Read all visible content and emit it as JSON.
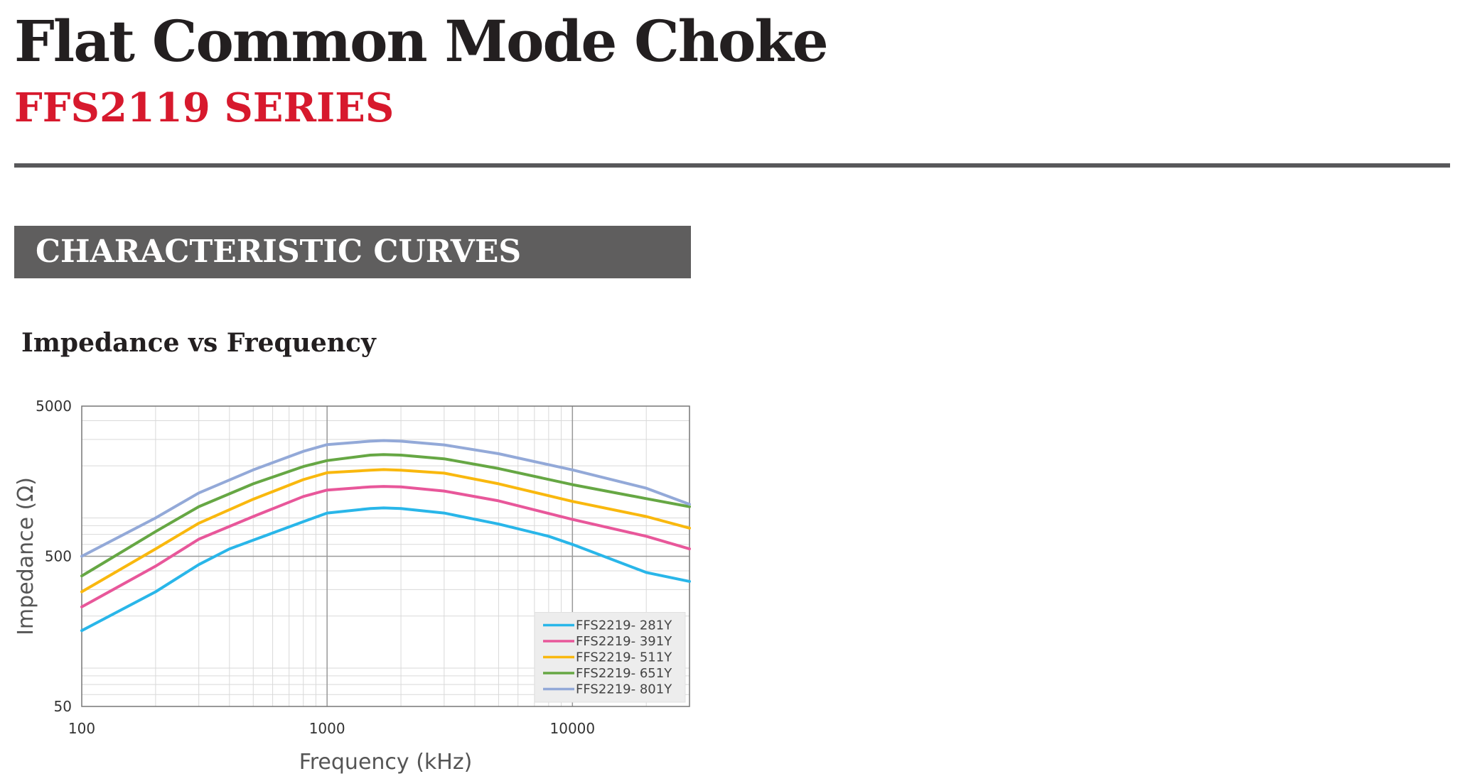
{
  "header": {
    "title": "Flat Common Mode Choke",
    "series": "FFS2119 SERIES"
  },
  "section": {
    "heading": "CHARACTERISTIC CURVES"
  },
  "chart_data": {
    "type": "line",
    "title": "Impedance vs Frequency",
    "xlabel": "Frequency (kHz)",
    "ylabel": "Impedance (Ω)",
    "x_scale": "log",
    "y_scale": "log",
    "xlim": [
      100,
      30000
    ],
    "ylim": [
      50,
      5000
    ],
    "x_ticks": [
      100,
      1000,
      10000
    ],
    "x_tick_labels": [
      "100",
      "1000",
      "10000"
    ],
    "y_ticks": [
      50,
      500,
      5000
    ],
    "y_tick_labels": [
      "50",
      "500",
      "5000"
    ],
    "grid": true,
    "legend_position": "bottom-right",
    "series": [
      {
        "name": "FFS2219- 281Y",
        "color": "#29b6e9",
        "x": [
          100,
          200,
          300,
          400,
          500,
          800,
          1000,
          1500,
          1700,
          2000,
          3000,
          5000,
          8000,
          10000,
          20000,
          30000
        ],
        "y": [
          160,
          290,
          440,
          560,
          640,
          850,
          970,
          1040,
          1050,
          1040,
          970,
          820,
          680,
          600,
          390,
          340
        ]
      },
      {
        "name": "FFS2219- 391Y",
        "color": "#e8579a",
        "x": [
          100,
          200,
          300,
          500,
          800,
          1000,
          1500,
          1700,
          2000,
          3000,
          5000,
          10000,
          20000,
          30000
        ],
        "y": [
          230,
          430,
          650,
          920,
          1250,
          1380,
          1450,
          1460,
          1450,
          1360,
          1170,
          880,
          680,
          560
        ]
      },
      {
        "name": "FFS2219- 511Y",
        "color": "#f9b80e",
        "x": [
          100,
          200,
          300,
          500,
          800,
          1000,
          1500,
          1700,
          2000,
          3000,
          5000,
          10000,
          20000,
          30000
        ],
        "y": [
          290,
          560,
          830,
          1200,
          1620,
          1800,
          1870,
          1890,
          1870,
          1790,
          1520,
          1160,
          920,
          770
        ]
      },
      {
        "name": "FFS2219- 651Y",
        "color": "#66a744",
        "x": [
          100,
          200,
          300,
          500,
          800,
          1000,
          1500,
          1700,
          2000,
          3000,
          5000,
          10000,
          20000,
          30000
        ],
        "y": [
          370,
          730,
          1070,
          1520,
          1980,
          2170,
          2360,
          2380,
          2360,
          2230,
          1920,
          1500,
          1210,
          1070
        ]
      },
      {
        "name": "FFS2219- 801Y",
        "color": "#93a9d8",
        "x": [
          100,
          200,
          300,
          500,
          800,
          1000,
          1500,
          1700,
          2000,
          3000,
          5000,
          10000,
          20000,
          30000
        ],
        "y": [
          500,
          900,
          1320,
          1880,
          2500,
          2770,
          2920,
          2950,
          2920,
          2760,
          2410,
          1880,
          1420,
          1110
        ]
      }
    ]
  }
}
